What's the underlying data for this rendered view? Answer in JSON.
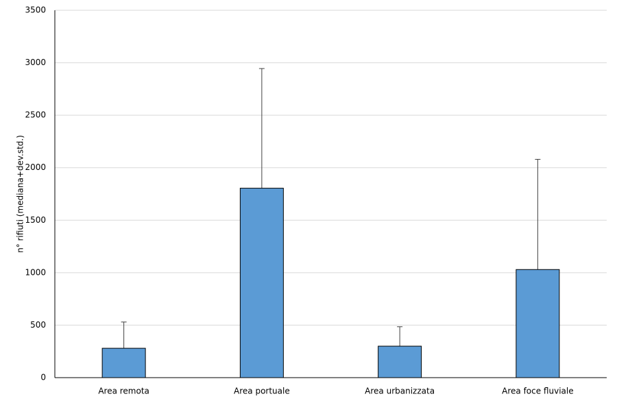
{
  "chart_data": {
    "type": "bar",
    "y_label": "n° rifiuti (mediana+dev.std.)",
    "categories": [
      "Area remota",
      "Area portuale",
      "Area urbanizzata",
      "Area foce fluviale"
    ],
    "values": [
      280,
      1805,
      300,
      1030
    ],
    "errors": [
      250,
      1140,
      185,
      1050
    ],
    "color": "#5b9bd5",
    "ylim": [
      0,
      3500
    ],
    "yticks": [
      0,
      500,
      1000,
      1500,
      2000,
      2500,
      3000,
      3500
    ],
    "grid": true
  }
}
